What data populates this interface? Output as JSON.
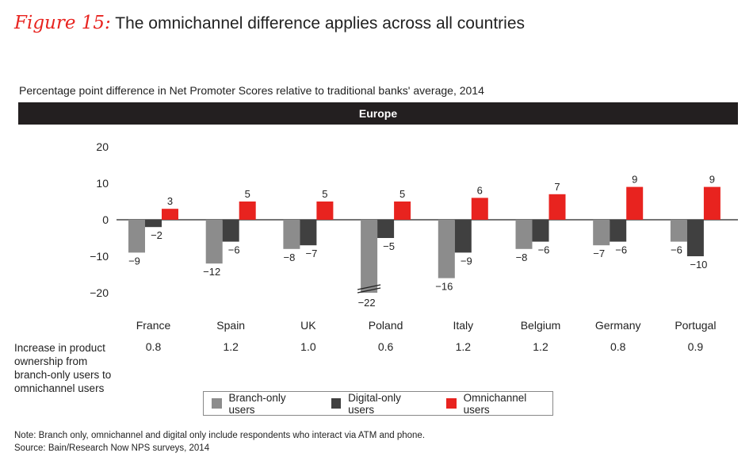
{
  "figure": {
    "label": "Figure 15:",
    "title": "The omnichannel difference applies across all countries"
  },
  "subtitle": "Percentage point difference in Net Promoter Scores relative to traditional banks' average, 2014",
  "band_label": "Europe",
  "chart_data": {
    "type": "bar",
    "title": "The omnichannel difference applies across all countries",
    "region": "Europe",
    "categories": [
      "France",
      "Spain",
      "UK",
      "Poland",
      "Italy",
      "Belgium",
      "Germany",
      "Portugal"
    ],
    "series": [
      {
        "name": "Branch-only users",
        "color": "#8c8c8c",
        "values": [
          -9,
          -12,
          -8,
          -22,
          -16,
          -8,
          -7,
          -6
        ]
      },
      {
        "name": "Digital-only users",
        "color": "#404040",
        "values": [
          -2,
          -6,
          -7,
          -5,
          -9,
          -6,
          -6,
          -10
        ]
      },
      {
        "name": "Omnichannel users",
        "color": "#e8231f",
        "values": [
          3,
          5,
          5,
          5,
          6,
          7,
          9,
          9
        ]
      }
    ],
    "value_labels": [
      [
        "−9",
        "−12",
        "−8",
        "−22",
        "−16",
        "−8",
        "−7",
        "−6"
      ],
      [
        "−2",
        "−6",
        "−7",
        "−5",
        "−9",
        "−6",
        "−6",
        "−10"
      ],
      [
        "3",
        "5",
        "5",
        "5",
        "6",
        "7",
        "9",
        "9"
      ]
    ],
    "yticks": [
      20,
      10,
      0,
      -10,
      -20
    ],
    "ytick_labels": [
      "20",
      "10",
      "0",
      "−10",
      "−20"
    ],
    "ylim": [
      -20,
      20
    ],
    "axis_break": "Poland",
    "grid": false,
    "legend_position": "bottom"
  },
  "product_row": {
    "label": "Increase in product ownership from branch-only users to omnichannel users",
    "values": [
      "0.8",
      "1.2",
      "1.0",
      "0.6",
      "1.2",
      "1.2",
      "0.8",
      "0.9"
    ]
  },
  "legend": [
    {
      "label": "Branch-only users",
      "color": "#8c8c8c"
    },
    {
      "label": "Digital-only users",
      "color": "#404040"
    },
    {
      "label": "Omnichannel users",
      "color": "#e8231f"
    }
  ],
  "notes": {
    "note": "Note: Branch only, omnichannel and digital only include respondents who interact via ATM and phone.",
    "source": "Source: Bain/Research Now NPS surveys, 2014"
  }
}
